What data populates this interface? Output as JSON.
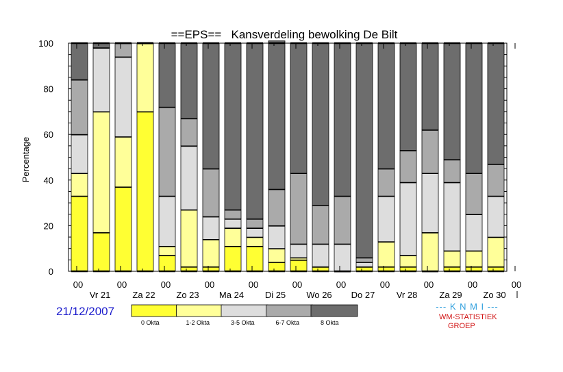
{
  "chart_data": {
    "type": "bar",
    "stacked": true,
    "title": "==EPS==   Kansverdeling bewolking De Bilt",
    "ylabel": "Percentage",
    "xlabel": "",
    "ylim": [
      0,
      100
    ],
    "yticks": [
      0,
      20,
      40,
      60,
      80,
      100
    ],
    "x_tick_top": [
      "00",
      "00",
      "00",
      "00",
      "00",
      "00",
      "00",
      "00",
      "00",
      "00",
      "00"
    ],
    "x_day_labels": [
      "Vr 21",
      "Za 22",
      "Zo 23",
      "Ma 24",
      "Di 25",
      "Wo 26",
      "Do 27",
      "Vr 28",
      "Za 29",
      "Zo 30"
    ],
    "bar_count": 20,
    "series": [
      {
        "name": "0 Okta",
        "color": "#ffff33",
        "values": [
          33,
          17,
          37,
          70,
          7,
          2,
          2,
          11,
          11,
          4,
          5,
          2,
          0,
          2,
          2,
          2,
          0,
          2,
          2,
          2
        ]
      },
      {
        "name": "1-2 Okta",
        "color": "#ffff99",
        "values": [
          10,
          53,
          22,
          30,
          4,
          25,
          12,
          8,
          4,
          6,
          1,
          0,
          0,
          0,
          11,
          5,
          17,
          7,
          7,
          13
        ]
      },
      {
        "name": "3-5 Okta",
        "color": "#dddddd",
        "values": [
          17,
          28,
          35,
          0,
          22,
          28,
          10,
          4,
          4,
          10,
          6,
          10,
          12,
          2,
          20,
          32,
          26,
          30,
          16,
          18
        ]
      },
      {
        "name": "6-7 Okta",
        "color": "#aaaaaa",
        "values": [
          24,
          0,
          6,
          0,
          39,
          12,
          21,
          4,
          4,
          16,
          31,
          17,
          21,
          2,
          12,
          14,
          19,
          10,
          18,
          14
        ]
      },
      {
        "name": "8 Okta",
        "color": "#6d6d6d",
        "values": [
          16,
          2,
          0,
          0,
          28,
          33,
          55,
          73,
          77,
          65,
          57,
          71,
          67,
          94,
          55,
          47,
          38,
          51,
          57,
          53
        ]
      }
    ],
    "legend_position": "bottom"
  },
  "footer": {
    "date": "21/12/2007",
    "org": "--- K N M I ---",
    "group_line1": "WM-STATISTIEK",
    "group_line2": "GROEP"
  }
}
